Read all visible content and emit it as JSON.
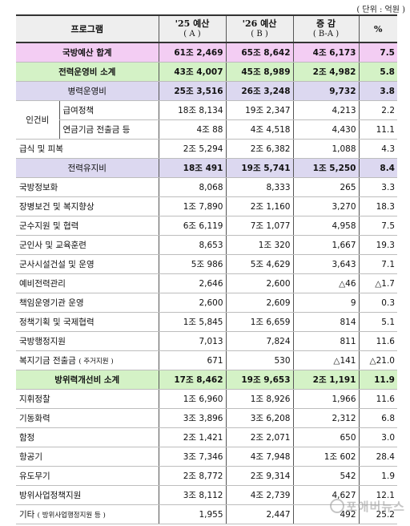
{
  "unit_label": "( 단위 : 억원 )",
  "headers": {
    "program": "프로그램",
    "a_top": "'25 예산",
    "a_sub": "( A )",
    "b_top": "'26 예산",
    "b_sub": "( B )",
    "c_top": "증 감",
    "c_sub": "( B-A )",
    "pct": "%"
  },
  "group_label": "인건비",
  "rows": [
    {
      "name": "국방예산 합계",
      "a": "61조 2,469",
      "b": "65조 8,642",
      "c": "4조 6,173",
      "p": "7.5"
    },
    {
      "name": "전력운영비 소계",
      "a": "43조 4,007",
      "b": "45조 8,989",
      "c": "2조 4,982",
      "p": "5.8"
    },
    {
      "name": "병력운영비",
      "a": "25조 3,516",
      "b": "26조 3,248",
      "c": "9,732",
      "p": "3.8"
    },
    {
      "name": "급여정책",
      "a": "18조 8,134",
      "b": "19조 2,347",
      "c": "4,213",
      "p": "2.2"
    },
    {
      "name": "연금기금 전출금 등",
      "a": "4조 88",
      "b": "4조 4,518",
      "c": "4,430",
      "p": "11.1"
    },
    {
      "name": "급식 및 피복",
      "a": "2조 5,294",
      "b": "2조 6,382",
      "c": "1,088",
      "p": "4.3"
    },
    {
      "name": "전력유지비",
      "a": "18조 491",
      "b": "19조 5,741",
      "c": "1조 5,250",
      "p": "8.4"
    },
    {
      "name": "국방정보화",
      "a": "8,068",
      "b": "8,333",
      "c": "265",
      "p": "3.3"
    },
    {
      "name": "장병보건 및 복지향상",
      "a": "1조 7,890",
      "b": "2조 1,160",
      "c": "3,270",
      "p": "18.3"
    },
    {
      "name": "군수지원 및 협력",
      "a": "6조 6,119",
      "b": "7조 1,077",
      "c": "4,958",
      "p": "7.5"
    },
    {
      "name": "군인사 및 교육훈련",
      "a": "8,653",
      "b": "1조 320",
      "c": "1,667",
      "p": "19.3"
    },
    {
      "name": "군사시설건설 및 운영",
      "a": "5조 986",
      "b": "5조 4,629",
      "c": "3,643",
      "p": "7.1"
    },
    {
      "name": "예비전력관리",
      "a": "2,646",
      "b": "2,600",
      "c": "△46",
      "p": "△1.7"
    },
    {
      "name": "책임운영기관 운영",
      "a": "2,600",
      "b": "2,609",
      "c": "9",
      "p": "0.3"
    },
    {
      "name": "정책기획 및 국제협력",
      "a": "1조 5,845",
      "b": "1조 6,659",
      "c": "814",
      "p": "5.1"
    },
    {
      "name": "국방행정지원",
      "a": "7,013",
      "b": "7,824",
      "c": "811",
      "p": "11.6"
    },
    {
      "name": "복지기금 전출금",
      "note": "( 주거지원 )",
      "a": "671",
      "b": "530",
      "c": "△141",
      "p": "△21.0"
    },
    {
      "name": "방위력개선비 소계",
      "a": "17조 8,462",
      "b": "19조 9,653",
      "c": "2조 1,191",
      "p": "11.9"
    },
    {
      "name": "지휘정찰",
      "a": "1조 6,960",
      "b": "1조 8,926",
      "c": "1,966",
      "p": "11.6"
    },
    {
      "name": "기동화력",
      "a": "3조 3,896",
      "b": "3조 6,208",
      "c": "2,312",
      "p": "6.8"
    },
    {
      "name": "함정",
      "a": "2조 1,421",
      "b": "2조 2,071",
      "c": "650",
      "p": "3.0"
    },
    {
      "name": "항공기",
      "a": "3조 7,346",
      "b": "4조 7,948",
      "c": "1조 602",
      "p": "28.4"
    },
    {
      "name": "유도무기",
      "a": "2조 8,772",
      "b": "2조 9,314",
      "c": "542",
      "p": "1.9"
    },
    {
      "name": "방위사업정책지원",
      "a": "3조 8,112",
      "b": "4조 2,739",
      "c": "4,627",
      "p": "12.1"
    },
    {
      "name": "기타",
      "note": "( 방위사업행정지원 등 )",
      "a": "1,955",
      "b": "2,447",
      "c": "492",
      "p": "25.2"
    }
  ],
  "watermark": "포애버뉴스"
}
